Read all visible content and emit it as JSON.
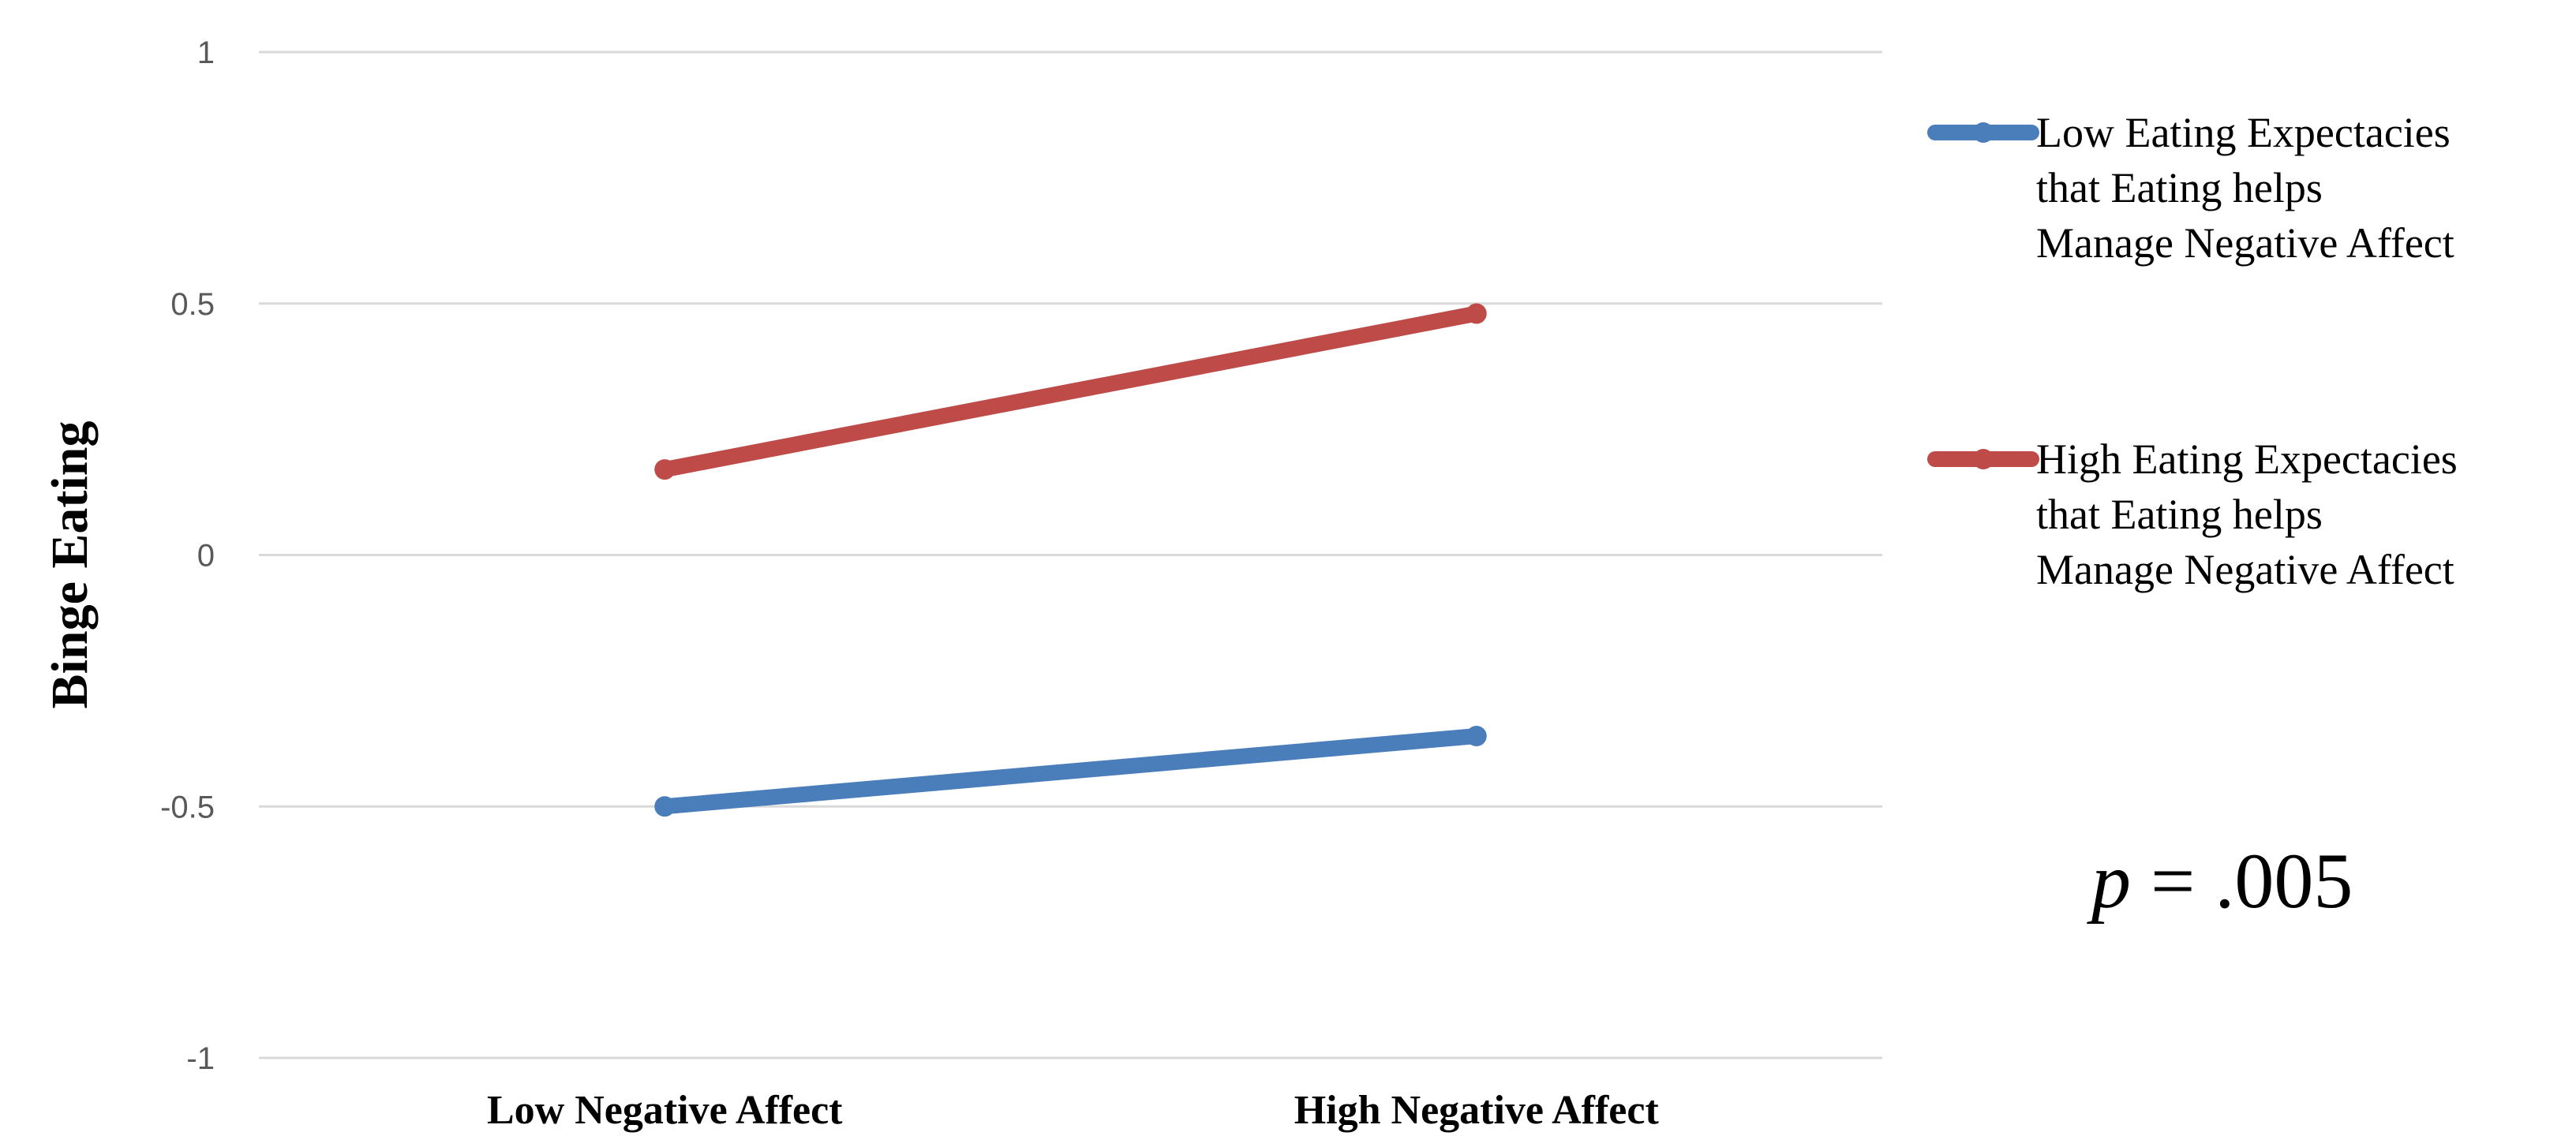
{
  "chart_data": {
    "type": "line",
    "title": "",
    "xlabel": "",
    "ylabel": "Binge Eating",
    "categories": [
      "Low Negative Affect",
      "High Negative Affect"
    ],
    "ylim": [
      -1,
      1
    ],
    "yticks": [
      1,
      0.5,
      0,
      -0.5,
      -1
    ],
    "ytick_labels": [
      "1",
      "0.5",
      "0",
      "-0.5",
      "-1"
    ],
    "grid": true,
    "legend_position": "right",
    "series": [
      {
        "name": "Low Eating Expectacies that Eating helps Manage Negative Affect",
        "name_lines": [
          "Low Eating Expectacies",
          "that Eating helps",
          "Manage Negative Affect"
        ],
        "color": "#4a7ebb",
        "values": [
          -0.5,
          -0.36
        ]
      },
      {
        "name": "High Eating Expectacies that Eating helps Manage Negative Affect",
        "name_lines": [
          "High Eating Expectacies",
          "that Eating helps",
          "Manage Negative Affect"
        ],
        "color": "#be4b48",
        "values": [
          0.17,
          0.48
        ]
      }
    ],
    "annotation": {
      "p_symbol": "p",
      "rest": " = .005"
    },
    "gridline_color": "#d9d9d9"
  }
}
